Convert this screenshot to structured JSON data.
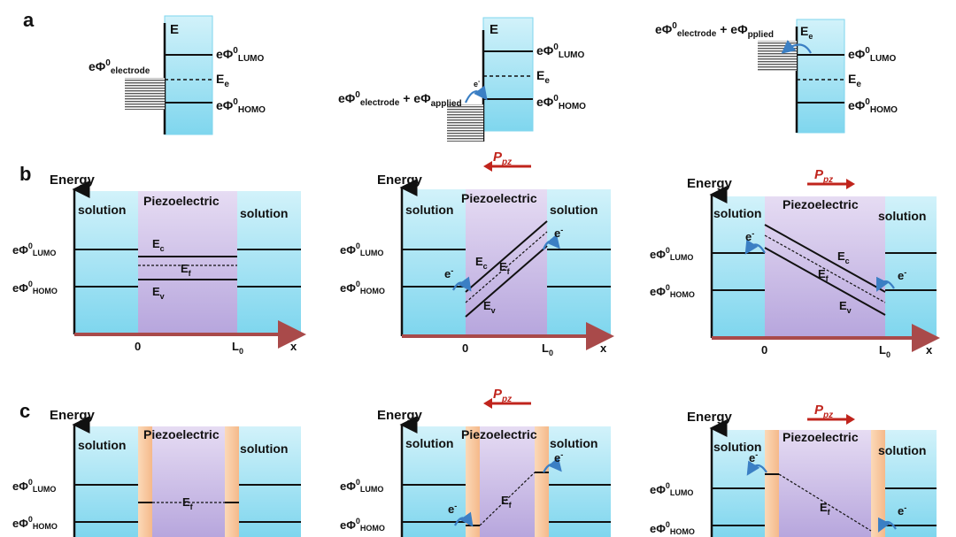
{
  "panel_labels": {
    "a": "a",
    "b": "b",
    "c": "c"
  },
  "colors": {
    "band_cyan_top": "#d2f2fa",
    "band_cyan_bottom": "#7fd6ee",
    "band_purple_top": "#e6dcf3",
    "band_purple_bottom": "#b7a6dd",
    "barrier_orange": "#f8c79a",
    "axis_red": "#a94a4a",
    "arrow_red": "#c0241c",
    "electron_arrow_blue": "#3b7fc4",
    "line_black": "#111111"
  },
  "panel_a": {
    "E_label": "E",
    "Ee_label": "E",
    "Ee_sub": "e",
    "lumo": {
      "prefix": "eΦ",
      "sup": "0",
      "sub": "LUMO"
    },
    "homo": {
      "prefix": "eΦ",
      "sup": "0",
      "sub": "HOMO"
    },
    "electrode": {
      "prefix": "eΦ",
      "sup": "0",
      "sub": "electrode"
    },
    "plus": " + ",
    "applied": {
      "prefix": "eΦ",
      "sub": "applied"
    },
    "applied_right": {
      "prefix": "eΦ",
      "sub": "pplied"
    },
    "electron": {
      "base": "e",
      "sup": "-"
    }
  },
  "panel_b": {
    "energy_label": "Energy",
    "solution_label": "solution",
    "piezo_label": "Piezoelectric",
    "Ec": {
      "base": "E",
      "sub": "c"
    },
    "Ef": {
      "base": "E",
      "sub": "f"
    },
    "Ev": {
      "base": "E",
      "sub": "v"
    },
    "lumo": {
      "prefix": "eΦ",
      "sup": "0",
      "sub": "LUMO"
    },
    "homo": {
      "prefix": "eΦ",
      "sup": "0",
      "sub": "HOMO"
    },
    "x_tick_0": "0",
    "x_tick_L": {
      "base": "L",
      "sub": "0"
    },
    "x_label": "x",
    "ppz": {
      "base": "P",
      "sub": "pz"
    },
    "electron": {
      "base": "e",
      "sup": "-"
    }
  },
  "panel_c": {
    "energy_label": "Energy",
    "solution_label": "solution",
    "piezo_label": "Piezoelectric",
    "Ef": {
      "base": "E",
      "sub": "f"
    },
    "lumo": {
      "prefix": "eΦ",
      "sup": "0",
      "sub": "LUMO"
    },
    "homo": {
      "prefix": "eΦ",
      "sup": "0",
      "sub": "HOMO"
    },
    "ppz": {
      "base": "P",
      "sub": "pz"
    },
    "electron": {
      "base": "e",
      "sup": "-"
    }
  }
}
